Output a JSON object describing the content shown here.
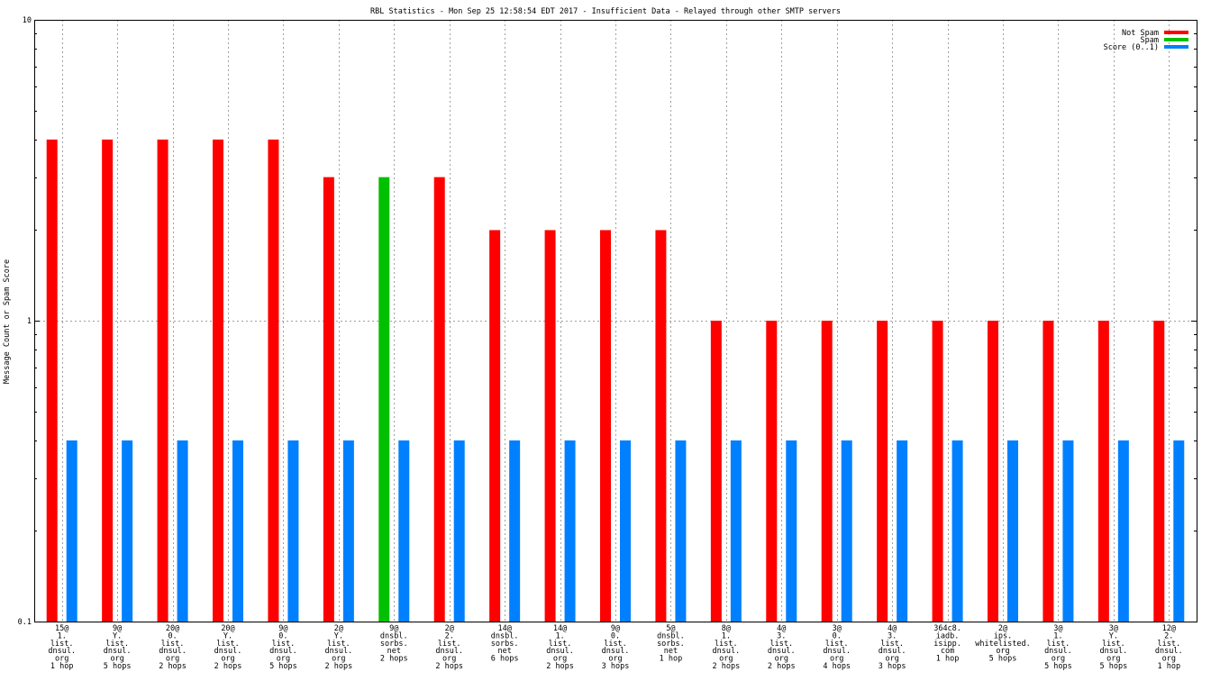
{
  "chart_data": {
    "type": "bar",
    "title": "RBL Statistics - Mon Sep 25 12:58:54 EDT 2017 - Insufficient Data - Relayed through other SMTP servers",
    "xlabel": "",
    "ylabel": "Message Count or Spam Score",
    "yscale": "log",
    "ylim": [
      0.1,
      10
    ],
    "yticks": [
      "10",
      "1",
      "0.1"
    ],
    "grid": true,
    "legend_position": "top-right",
    "colors": {
      "Not Spam": "#ff0000",
      "Spam": "#00c000",
      "Score (0..1)": "#0080ff"
    },
    "categories": [
      [
        "15@",
        "1.",
        "list.",
        "dnsul.",
        "org",
        "1 hop"
      ],
      [
        "9@",
        "Y.",
        "list.",
        "dnsul.",
        "org",
        "5 hops"
      ],
      [
        "20@",
        "0.",
        "list.",
        "dnsul.",
        "org",
        "2 hops"
      ],
      [
        "20@",
        "Y.",
        "list.",
        "dnsul.",
        "org",
        "2 hops"
      ],
      [
        "9@",
        "0.",
        "list.",
        "dnsul.",
        "org",
        "5 hops"
      ],
      [
        "2@",
        "Y.",
        "list.",
        "dnsul.",
        "org",
        "2 hops"
      ],
      [
        "9@",
        "dnsbl.",
        "sorbs.",
        "net",
        "2 hops"
      ],
      [
        "2@",
        "2.",
        "list.",
        "dnsul.",
        "org",
        "2 hops"
      ],
      [
        "14@",
        "dnsbl.",
        "sorbs.",
        "net",
        "6 hops"
      ],
      [
        "14@",
        "1.",
        "list.",
        "dnsul.",
        "org",
        "2 hops"
      ],
      [
        "9@",
        "0.",
        "list.",
        "dnsul.",
        "org",
        "3 hops"
      ],
      [
        "5@",
        "dnsbl.",
        "sorbs.",
        "net",
        "1 hop"
      ],
      [
        "8@",
        "1.",
        "list.",
        "dnsul.",
        "org",
        "2 hops"
      ],
      [
        "4@",
        "3.",
        "list.",
        "dnsul.",
        "org",
        "2 hops"
      ],
      [
        "3@",
        "0.",
        "list.",
        "dnsul.",
        "org",
        "4 hops"
      ],
      [
        "4@",
        "3.",
        "list.",
        "dnsul.",
        "org",
        "3 hops"
      ],
      [
        "364c8.",
        "iadb.",
        "isipp.",
        "com",
        "1 hop"
      ],
      [
        "2@",
        "ips.",
        "whitelisted.",
        "org",
        "5 hops"
      ],
      [
        "3@",
        "1.",
        "list.",
        "dnsul.",
        "org",
        "5 hops"
      ],
      [
        "3@",
        "Y.",
        "list.",
        "dnsul.",
        "org",
        "5 hops"
      ],
      [
        "12@",
        "2.",
        "list.",
        "dnsul.",
        "org",
        "1 hop"
      ]
    ],
    "series": [
      {
        "name": "Not Spam",
        "values": [
          4,
          4,
          4,
          4,
          4,
          3,
          0,
          3,
          2,
          2,
          2,
          2,
          1,
          1,
          1,
          1,
          1,
          1,
          1,
          1,
          1
        ]
      },
      {
        "name": "Spam",
        "values": [
          0,
          0,
          0,
          0,
          0,
          0,
          3,
          0,
          0,
          0,
          0,
          0,
          0,
          0,
          0,
          0,
          0,
          0,
          0,
          0,
          0
        ]
      },
      {
        "name": "Score (0..1)",
        "values": [
          0.4,
          0.4,
          0.4,
          0.4,
          0.4,
          0.4,
          0.4,
          0.4,
          0.4,
          0.4,
          0.4,
          0.4,
          0.4,
          0.4,
          0.4,
          0.4,
          0.4,
          0.4,
          0.4,
          0.4,
          0.4
        ]
      }
    ]
  }
}
